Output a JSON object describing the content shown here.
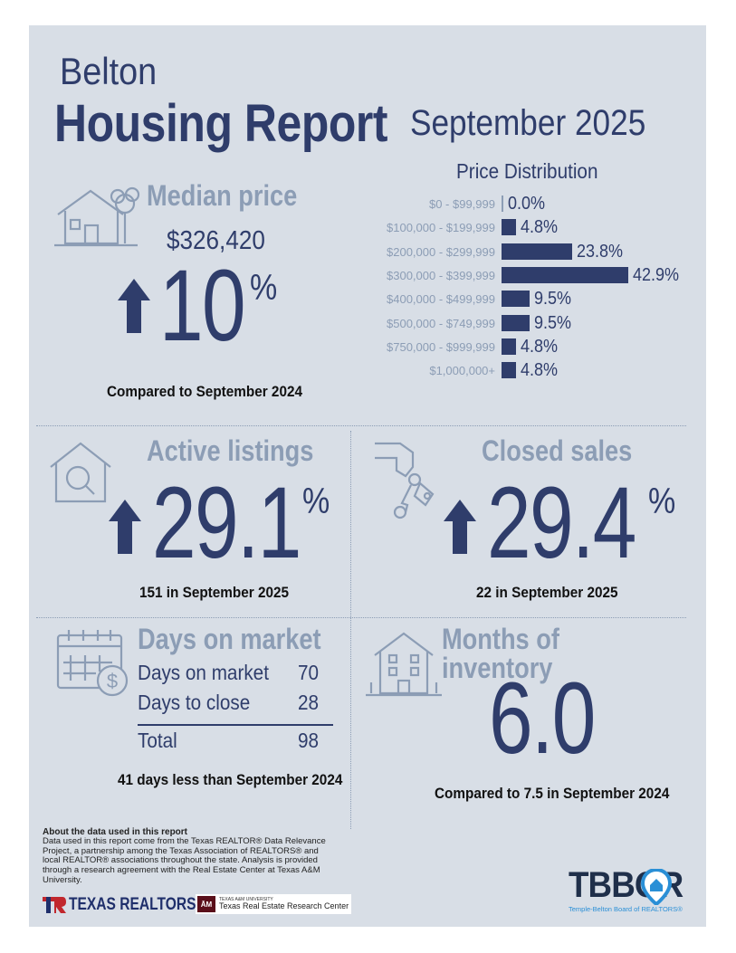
{
  "header": {
    "city": "Belton",
    "title": "Housing Report",
    "month": "September 2025"
  },
  "median_price": {
    "title": "Median price",
    "value": "$326,420",
    "change": "10",
    "pct_sign": "%",
    "caption": "Compared to September 2024"
  },
  "price_distribution": {
    "title": "Price Distribution",
    "rows": [
      {
        "label": "$0 - $99,999",
        "value": "0.0%",
        "pct": 0.0
      },
      {
        "label": "$100,000 - $199,999",
        "value": "4.8%",
        "pct": 4.8
      },
      {
        "label": "$200,000 - $299,999",
        "value": "23.8%",
        "pct": 23.8
      },
      {
        "label": "$300,000 - $399,999",
        "value": "42.9%",
        "pct": 42.9
      },
      {
        "label": "$400,000 - $499,999",
        "value": "9.5%",
        "pct": 9.5
      },
      {
        "label": "$500,000 - $749,999",
        "value": "9.5%",
        "pct": 9.5
      },
      {
        "label": "$750,000 - $999,999",
        "value": "4.8%",
        "pct": 4.8
      },
      {
        "label": "$1,000,000+",
        "value": "4.8%",
        "pct": 4.8
      }
    ]
  },
  "active_listings": {
    "title": "Active listings",
    "change": "29.1",
    "pct_sign": "%",
    "caption": "151 in September 2025"
  },
  "closed_sales": {
    "title": "Closed sales",
    "change": "29.4",
    "pct_sign": "%",
    "caption": "22 in September 2025"
  },
  "days_on_market": {
    "title": "Days on market",
    "rows": [
      {
        "label": "Days on market",
        "value": "70"
      },
      {
        "label": "Days to close",
        "value": "28"
      }
    ],
    "total_label": "Total",
    "total_value": "98",
    "caption": "41 days less than September 2024"
  },
  "months_inventory": {
    "title": "Months of inventory",
    "value": "6.0",
    "caption": "Compared to 7.5 in September 2024"
  },
  "about": {
    "heading": "About the data used in this report",
    "body": "Data used in this report come from the Texas REALTOR® Data Relevance Project, a partnership among the Texas Association of REALTORS® and local REALTOR® associations throughout the state. Analysis is provided through a research agreement with the Real Estate Center at Texas A&M University."
  },
  "logos": {
    "texas_realtors": "TEXAS REALTORS",
    "tamu_small": "TEXAS A&M UNIVERSITY",
    "tamu_center": "Texas Real Estate Research Center",
    "tbbor": "TBBOR",
    "tbbor_sub": "Temple-Belton Board of REALTORS®"
  },
  "colors": {
    "navy": "#2f3d6b",
    "steel": "#8c9db5",
    "panel": "#d8dee6",
    "accent_blue": "#2a8fd6",
    "maroon": "#5a0f1a"
  }
}
